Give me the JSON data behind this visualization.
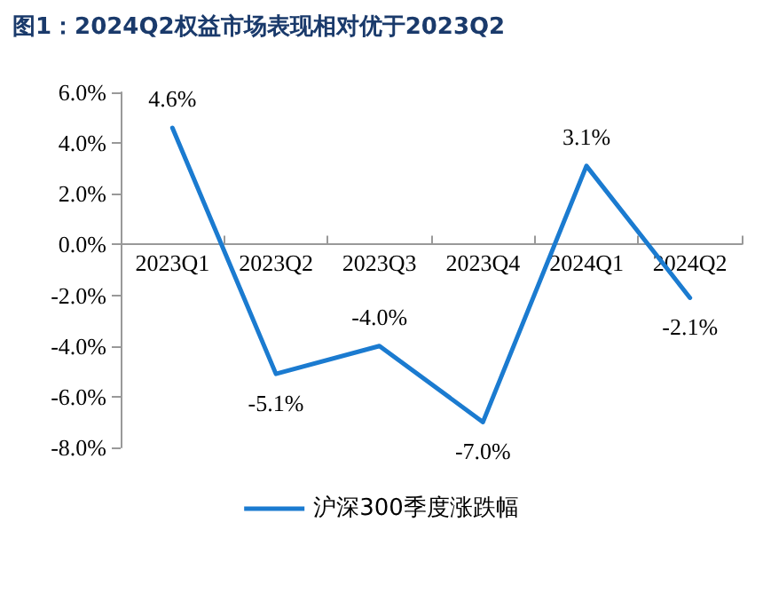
{
  "chart_data": {
    "type": "line",
    "title": "图1：2024Q2权益市场表现相对优于2023Q2",
    "categories": [
      "2023Q1",
      "2023Q2",
      "2023Q3",
      "2023Q4",
      "2024Q1",
      "2024Q2"
    ],
    "series": [
      {
        "name": "沪深300季度涨跌幅",
        "color": "#1b7bd0",
        "values": [
          4.6,
          -5.1,
          -4.0,
          -7.0,
          3.1,
          -2.1
        ],
        "value_labels": [
          "4.6%",
          "-5.1%",
          "-4.0%",
          "-7.0%",
          "3.1%",
          "-2.1%"
        ]
      }
    ],
    "ylim": [
      -8,
      6
    ],
    "yticks": [
      {
        "value": -8,
        "label": "-8.0%"
      },
      {
        "value": -6,
        "label": "-6.0%"
      },
      {
        "value": -4,
        "label": "-4.0%"
      },
      {
        "value": -2,
        "label": "-2.0%"
      },
      {
        "value": 0,
        "label": "0.0%"
      },
      {
        "value": 2,
        "label": "2.0%"
      },
      {
        "value": 4,
        "label": "4.0%"
      },
      {
        "value": 6,
        "label": "6.0%"
      }
    ],
    "legend": "bottom",
    "marker": "none",
    "line_style": "solid"
  }
}
